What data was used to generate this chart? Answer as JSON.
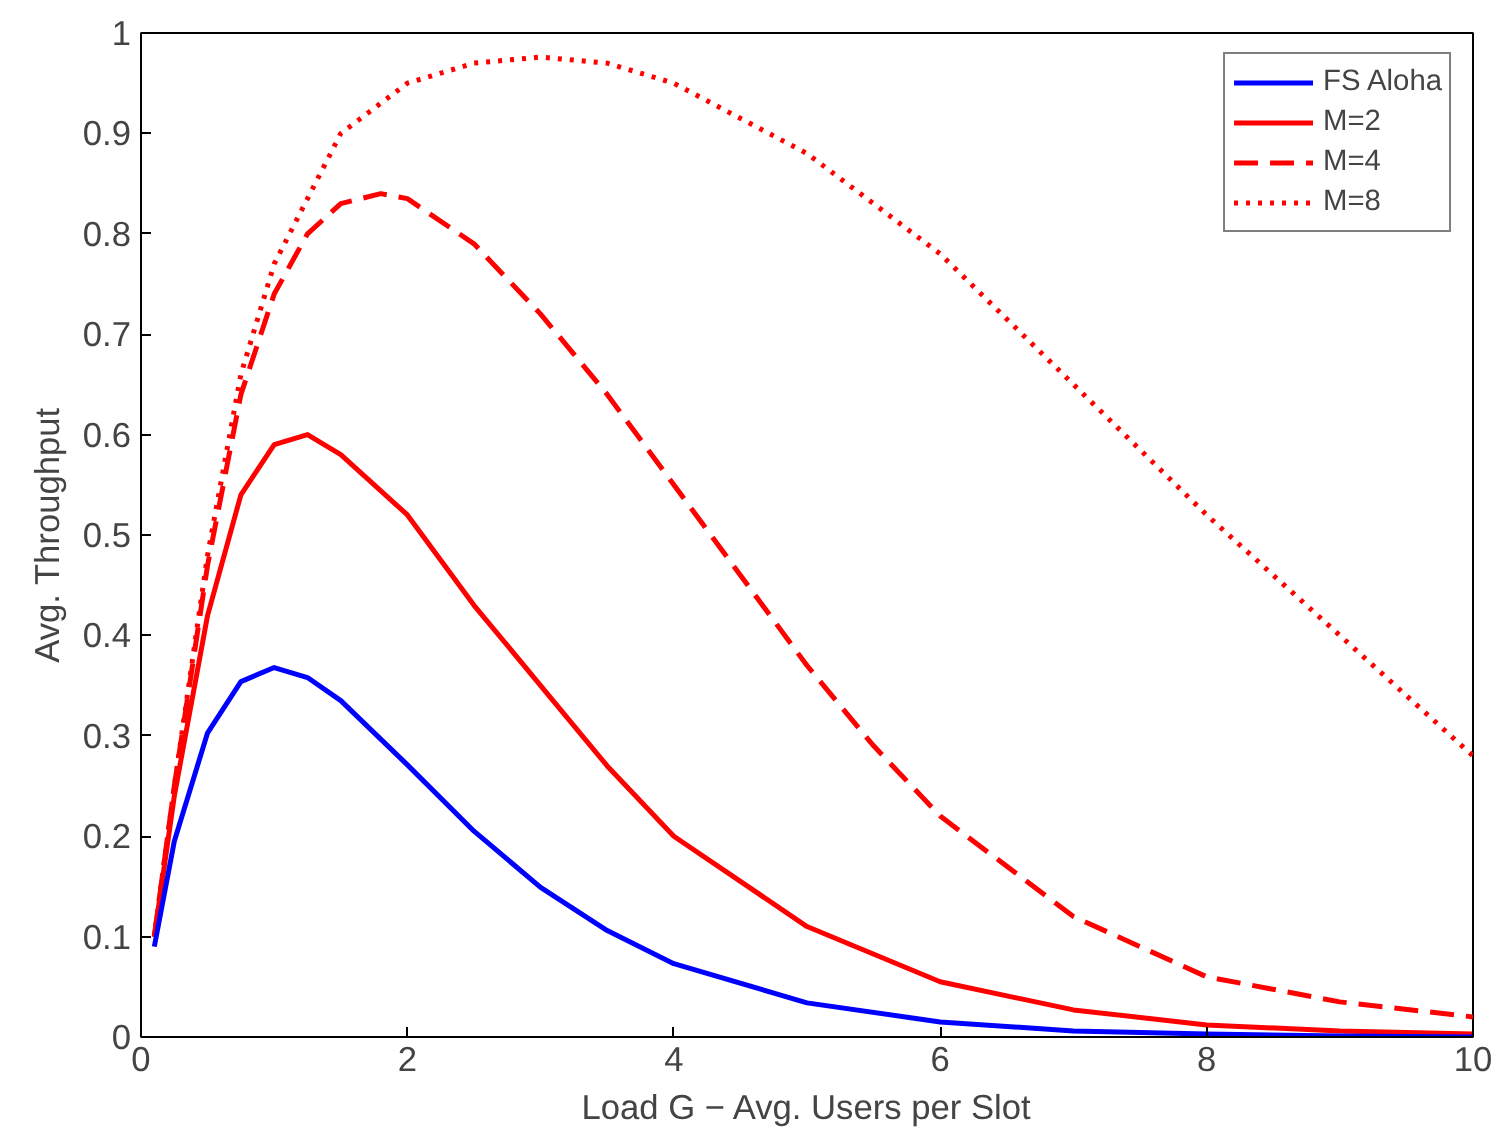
{
  "chart_data": {
    "type": "line",
    "xlabel": "Load G − Avg. Users per Slot",
    "ylabel": "Avg. Throughput",
    "xlim": [
      0,
      10
    ],
    "ylim": [
      0,
      1
    ],
    "xticks": [
      0,
      2,
      4,
      6,
      8,
      10
    ],
    "yticks": [
      0,
      0.1,
      0.2,
      0.3,
      0.4,
      0.5,
      0.6,
      0.7,
      0.8,
      0.9,
      1
    ],
    "grid": false,
    "legend": "top right",
    "marker": "none",
    "series": [
      {
        "name": "FS Aloha",
        "color": "#0000ff",
        "line_style": "solid",
        "x": [
          0.1,
          0.25,
          0.5,
          0.75,
          1,
          1.25,
          1.5,
          2,
          2.5,
          3,
          3.5,
          4,
          5,
          6,
          7,
          8,
          9,
          10
        ],
        "values": [
          0.09,
          0.195,
          0.303,
          0.354,
          0.368,
          0.358,
          0.335,
          0.271,
          0.205,
          0.149,
          0.106,
          0.073,
          0.034,
          0.015,
          0.006,
          0.003,
          0.001,
          0
        ]
      },
      {
        "name": "M=2",
        "color": "#ff0000",
        "line_style": "solid",
        "x": [
          0.1,
          0.25,
          0.5,
          0.75,
          1,
          1.25,
          1.5,
          2,
          2.5,
          3,
          3.5,
          4,
          5,
          6,
          7,
          8,
          9,
          10
        ],
        "values": [
          0.1,
          0.24,
          0.42,
          0.54,
          0.59,
          0.6,
          0.58,
          0.52,
          0.43,
          0.35,
          0.27,
          0.2,
          0.11,
          0.055,
          0.027,
          0.012,
          0.006,
          0.003
        ]
      },
      {
        "name": "M=4",
        "color": "#ff0000",
        "line_style": "dashed",
        "x": [
          0.1,
          0.25,
          0.5,
          0.75,
          1,
          1.25,
          1.5,
          1.8,
          2,
          2.5,
          3,
          3.5,
          4,
          4.5,
          5,
          5.5,
          6,
          7,
          8,
          9,
          10
        ],
        "values": [
          0.1,
          0.25,
          0.47,
          0.64,
          0.74,
          0.8,
          0.83,
          0.84,
          0.835,
          0.79,
          0.72,
          0.64,
          0.55,
          0.46,
          0.37,
          0.29,
          0.22,
          0.12,
          0.06,
          0.035,
          0.02
        ]
      },
      {
        "name": "M=8",
        "color": "#ff0000",
        "line_style": "dotted",
        "x": [
          0.1,
          0.25,
          0.5,
          0.75,
          1,
          1.5,
          2,
          2.5,
          3,
          3.5,
          4,
          5,
          6,
          7,
          8,
          9,
          10
        ],
        "values": [
          0.1,
          0.25,
          0.48,
          0.66,
          0.77,
          0.9,
          0.95,
          0.97,
          0.976,
          0.97,
          0.95,
          0.88,
          0.78,
          0.65,
          0.52,
          0.4,
          0.28
        ]
      }
    ]
  }
}
